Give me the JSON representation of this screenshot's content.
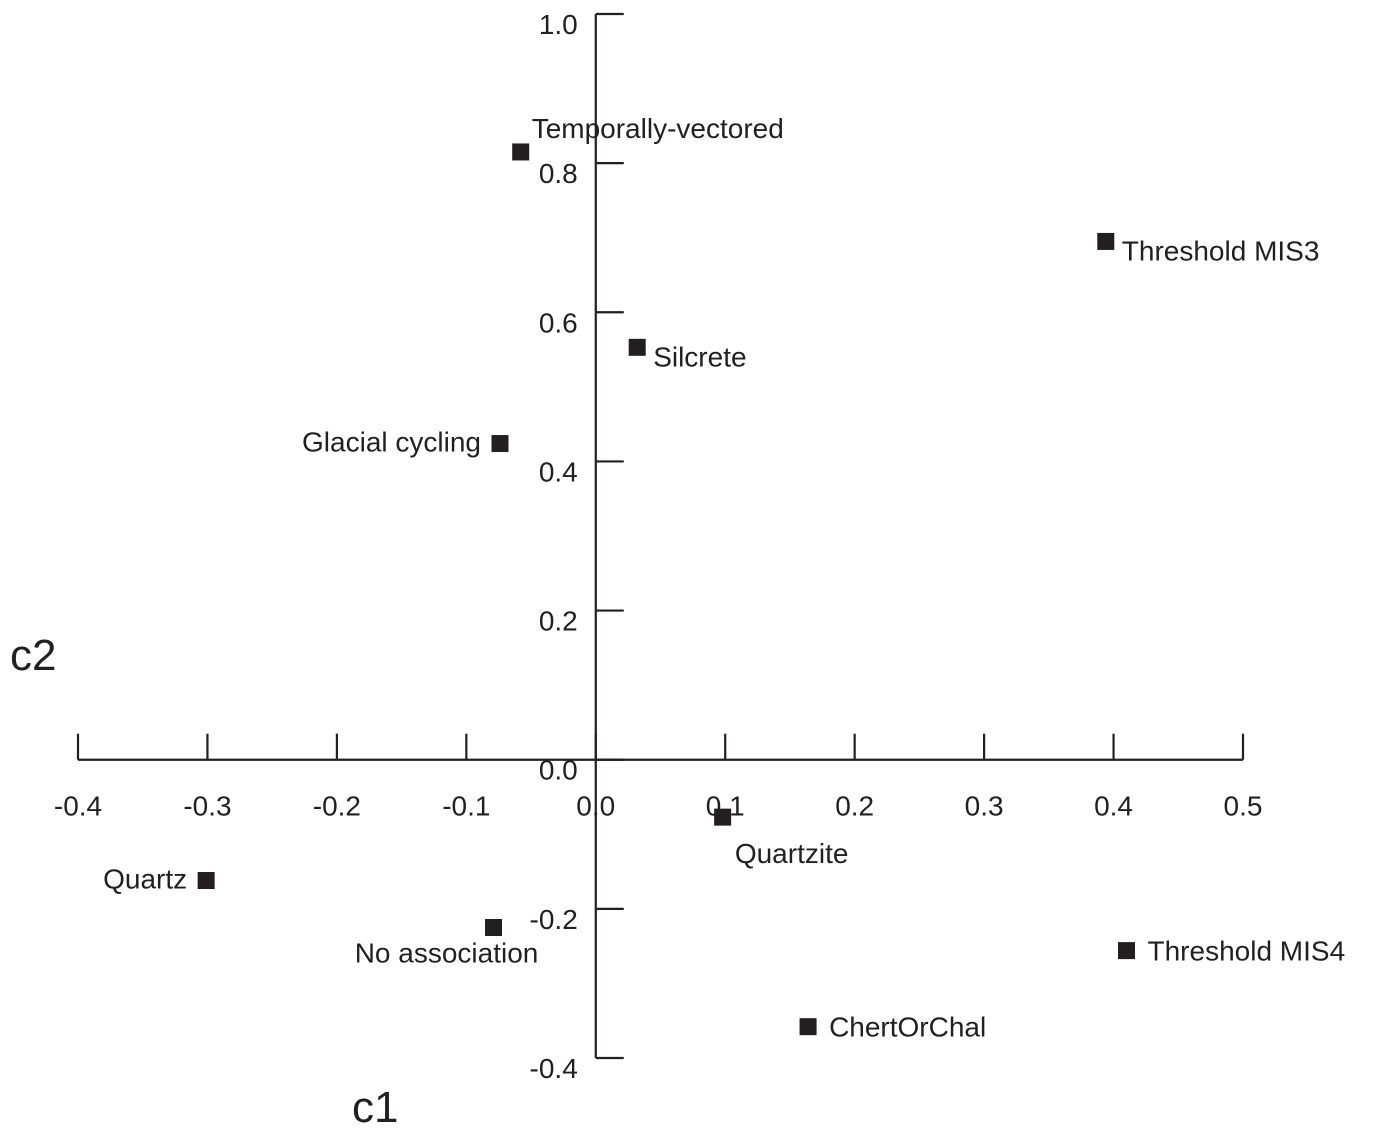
{
  "chart_data": {
    "type": "scatter",
    "title": "",
    "xlabel": "c1",
    "ylabel": "c2",
    "xlim": [
      -0.4,
      0.5
    ],
    "ylim": [
      -0.4,
      1.0
    ],
    "x_ticks": [
      -0.4,
      -0.3,
      -0.2,
      -0.1,
      0.0,
      0.1,
      0.2,
      0.3,
      0.4,
      0.5
    ],
    "x_tick_labels": [
      "-0.4",
      "-0.3",
      "-0.2",
      "-0.1",
      "0.0",
      "0.1",
      "0.2",
      "0.3",
      "0.4",
      "0.5"
    ],
    "y_ticks": [
      -0.4,
      -0.2,
      0.0,
      0.2,
      0.4,
      0.6,
      0.8,
      1.0
    ],
    "y_tick_labels": [
      "-0.4",
      "-0.2",
      "0.0",
      "0.2",
      "0.4",
      "0.6",
      "0.8",
      "1.0"
    ],
    "grid": false,
    "marker_color": "#231f20",
    "axis_color": "#231f20",
    "points": [
      {
        "label": "Temporally-vectored",
        "x": -0.058,
        "y": 0.815,
        "label_side": "above-right"
      },
      {
        "label": "Threshold MIS3",
        "x": 0.394,
        "y": 0.695,
        "label_side": "right-below"
      },
      {
        "label": "Silcrete",
        "x": 0.032,
        "y": 0.553,
        "label_side": "right-below"
      },
      {
        "label": "Glacial cycling",
        "x": -0.074,
        "y": 0.424,
        "label_side": "left"
      },
      {
        "label": "Quartzite",
        "x": 0.098,
        "y": -0.077,
        "label_side": "below"
      },
      {
        "label": "Quartz",
        "x": -0.301,
        "y": -0.162,
        "label_side": "left"
      },
      {
        "label": "No association",
        "x": -0.079,
        "y": -0.225,
        "label_side": "below-left"
      },
      {
        "label": "Threshold MIS4",
        "x": 0.41,
        "y": -0.256,
        "label_side": "right"
      },
      {
        "label": "ChertOrChal",
        "x": 0.164,
        "y": -0.358,
        "label_side": "right"
      }
    ]
  }
}
